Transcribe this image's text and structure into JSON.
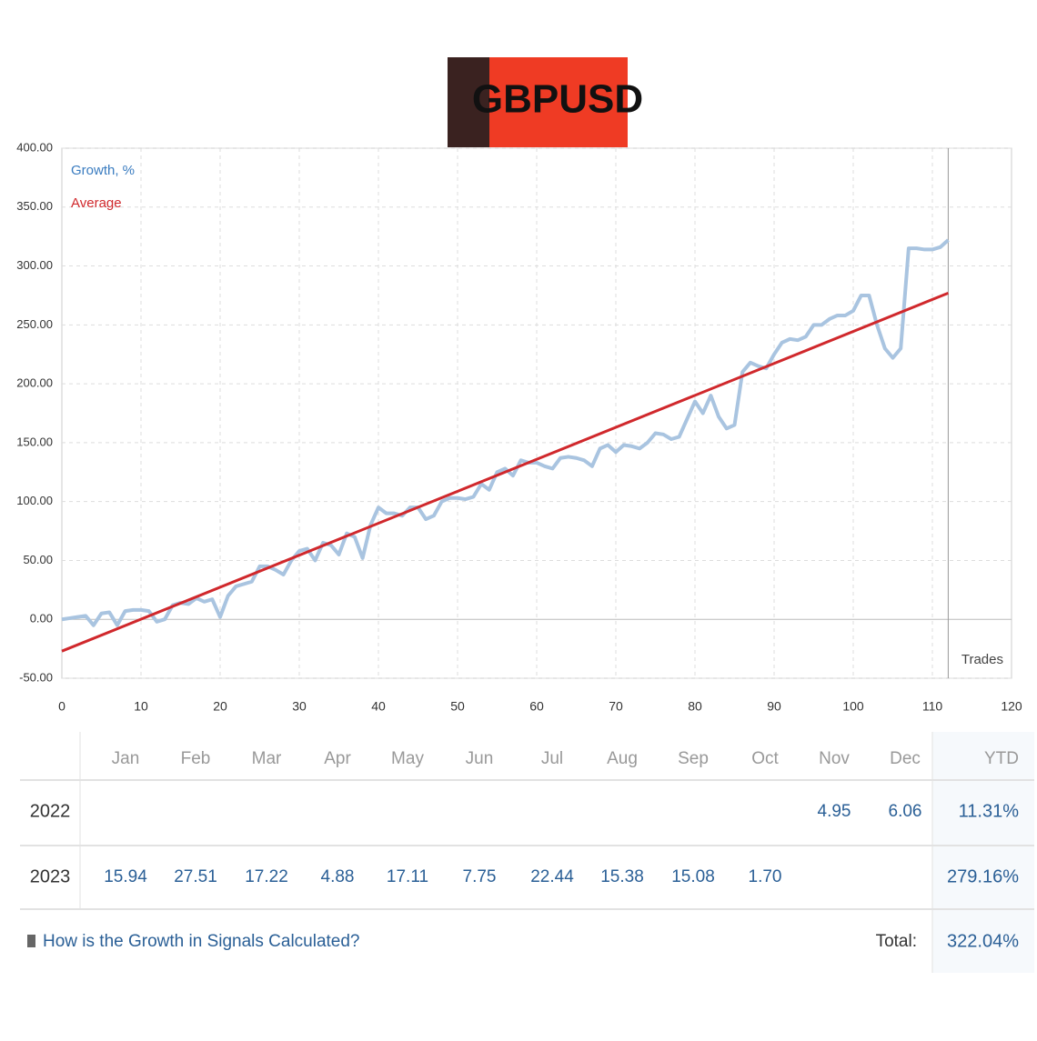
{
  "header": {
    "logo_text": "GBPUSD"
  },
  "chart_data": {
    "type": "line",
    "x_axis_label": "Trades",
    "x": [
      0,
      1,
      2,
      3,
      4,
      5,
      6,
      7,
      8,
      9,
      10,
      11,
      12,
      13,
      14,
      15,
      16,
      17,
      18,
      19,
      20,
      21,
      22,
      23,
      24,
      25,
      26,
      27,
      28,
      29,
      30,
      31,
      32,
      33,
      34,
      35,
      36,
      37,
      38,
      39,
      40,
      41,
      42,
      43,
      44,
      45,
      46,
      47,
      48,
      49,
      50,
      51,
      52,
      53,
      54,
      55,
      56,
      57,
      58,
      59,
      60,
      61,
      62,
      63,
      64,
      65,
      66,
      67,
      68,
      69,
      70,
      71,
      72,
      73,
      74,
      75,
      76,
      77,
      78,
      79,
      80,
      81,
      82,
      83,
      84,
      85,
      86,
      87,
      88,
      89,
      90,
      91,
      92,
      93,
      94,
      95,
      96,
      97,
      98,
      99,
      100,
      101,
      102,
      103,
      104,
      105,
      106,
      107,
      108,
      109,
      110,
      111,
      112
    ],
    "series": [
      {
        "name": "Growth, %",
        "color": "#a9c4e0",
        "values": [
          0,
          1,
          2,
          3,
          -5,
          5,
          6,
          -5,
          7,
          8,
          8,
          7,
          -2,
          0,
          12,
          14,
          13,
          18,
          15,
          17,
          2,
          20,
          28,
          30,
          32,
          45,
          45,
          42,
          38,
          50,
          58,
          60,
          50,
          65,
          63,
          55,
          73,
          70,
          52,
          80,
          95,
          90,
          90,
          88,
          95,
          95,
          85,
          88,
          100,
          103,
          103,
          102,
          104,
          115,
          110,
          125,
          128,
          122,
          135,
          133,
          133,
          130,
          128,
          137,
          138,
          137,
          135,
          130,
          145,
          148,
          142,
          148,
          147,
          145,
          150,
          158,
          157,
          153,
          155,
          170,
          185,
          175,
          190,
          172,
          162,
          165,
          210,
          218,
          215,
          213,
          225,
          235,
          238,
          237,
          240,
          250,
          250,
          255,
          258,
          258,
          262,
          275,
          275,
          250,
          230,
          222,
          230,
          315,
          315,
          314,
          314,
          316,
          322
        ]
      },
      {
        "name": "Average",
        "color": "#d0282c",
        "x": [
          0,
          112
        ],
        "values": [
          -27,
          277
        ]
      }
    ],
    "xlim": [
      0,
      120
    ],
    "xticks": [
      0,
      10,
      20,
      30,
      40,
      50,
      60,
      70,
      80,
      90,
      100,
      110,
      120
    ],
    "ylim": [
      -50,
      400
    ],
    "yticks": [
      {
        "value": -50,
        "label": "-50.00"
      },
      {
        "value": 0,
        "label": "0.00"
      },
      {
        "value": 50,
        "label": "50.00"
      },
      {
        "value": 100,
        "label": "100.00"
      },
      {
        "value": 150,
        "label": "150.00"
      },
      {
        "value": 200,
        "label": "200.00"
      },
      {
        "value": 250,
        "label": "250.00"
      },
      {
        "value": 300,
        "label": "300.00"
      },
      {
        "value": 350,
        "label": "350.00"
      },
      {
        "value": 400,
        "label": "400.00"
      }
    ],
    "grid": true
  },
  "table": {
    "months": [
      "Jan",
      "Feb",
      "Mar",
      "Apr",
      "May",
      "Jun",
      "Jul",
      "Aug",
      "Sep",
      "Oct",
      "Nov",
      "Dec"
    ],
    "ytd_header": "YTD",
    "rows": [
      {
        "year": "2022",
        "months": [
          null,
          null,
          null,
          null,
          null,
          null,
          null,
          null,
          null,
          null,
          "4.95",
          "6.06"
        ],
        "ytd": "11.31%"
      },
      {
        "year": "2023",
        "months": [
          "15.94",
          "27.51",
          "17.22",
          "4.88",
          "17.11",
          "7.75",
          "22.44",
          "15.38",
          "15.08",
          "1.70",
          null,
          null
        ],
        "ytd": "279.16%"
      }
    ]
  },
  "footer": {
    "link": "How is the Growth in Signals Calculated?",
    "total_label": "Total:",
    "total": "322.04%"
  }
}
